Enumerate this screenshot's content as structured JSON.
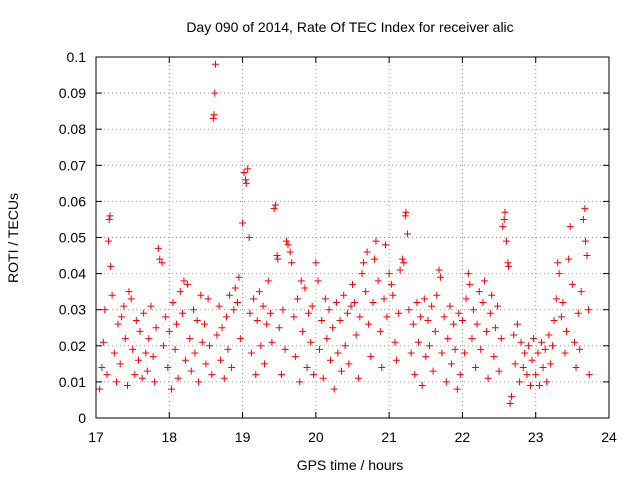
{
  "chart_data": {
    "type": "scatter",
    "title": "Day 090 of 2014, Rate Of TEC Index for receiver alic",
    "xlabel": "GPS time / hours",
    "ylabel": "ROTI / TECUs",
    "xlim": [
      17,
      24
    ],
    "ylim": [
      0,
      0.1
    ],
    "x_ticks": [
      17,
      18,
      19,
      20,
      21,
      22,
      23,
      24
    ],
    "x_tick_labels": [
      "17",
      "18",
      "19",
      "20",
      "21",
      "22",
      "23",
      "24"
    ],
    "y_ticks": [
      0,
      0.01,
      0.02,
      0.03,
      0.04,
      0.05,
      0.06,
      0.07,
      0.08,
      0.09,
      0.1
    ],
    "y_tick_labels": [
      "0",
      "0.01",
      "0.02",
      "0.03",
      "0.04",
      "0.05",
      "0.06",
      "0.07",
      "0.08",
      "0.09",
      "0.1"
    ],
    "grid": true,
    "marker": "+",
    "series": [
      {
        "name": "ROTI",
        "color": "#ff0000",
        "points": [
          [
            17.05,
            0.008
          ],
          [
            17.08,
            0.014
          ],
          [
            17.1,
            0.021
          ],
          [
            17.12,
            0.03
          ],
          [
            17.15,
            0.012
          ],
          [
            17.17,
            0.049
          ],
          [
            17.18,
            0.055
          ],
          [
            17.19,
            0.056
          ],
          [
            17.2,
            0.042
          ],
          [
            17.22,
            0.034
          ],
          [
            17.25,
            0.018
          ],
          [
            17.28,
            0.01
          ],
          [
            17.3,
            0.026
          ],
          [
            17.33,
            0.015
          ],
          [
            17.35,
            0.028
          ],
          [
            17.38,
            0.031
          ],
          [
            17.4,
            0.022
          ],
          [
            17.43,
            0.009
          ],
          [
            17.45,
            0.035
          ],
          [
            17.48,
            0.033
          ],
          [
            17.5,
            0.019
          ],
          [
            17.53,
            0.012
          ],
          [
            17.55,
            0.027
          ],
          [
            17.58,
            0.016
          ],
          [
            17.6,
            0.024
          ],
          [
            17.63,
            0.011
          ],
          [
            17.65,
            0.029
          ],
          [
            17.68,
            0.018
          ],
          [
            17.7,
            0.013
          ],
          [
            17.72,
            0.022
          ],
          [
            17.75,
            0.031
          ],
          [
            17.78,
            0.017
          ],
          [
            17.8,
            0.01
          ],
          [
            17.82,
            0.025
          ],
          [
            17.85,
            0.047
          ],
          [
            17.87,
            0.044
          ],
          [
            17.9,
            0.043
          ],
          [
            17.92,
            0.02
          ],
          [
            17.95,
            0.028
          ],
          [
            17.98,
            0.014
          ],
          [
            18.0,
            0.024
          ],
          [
            18.03,
            0.008
          ],
          [
            18.05,
            0.032
          ],
          [
            18.08,
            0.019
          ],
          [
            18.1,
            0.026
          ],
          [
            18.12,
            0.011
          ],
          [
            18.15,
            0.035
          ],
          [
            18.18,
            0.029
          ],
          [
            18.2,
            0.038
          ],
          [
            18.22,
            0.016
          ],
          [
            18.25,
            0.037
          ],
          [
            18.28,
            0.022
          ],
          [
            18.3,
            0.013
          ],
          [
            18.33,
            0.03
          ],
          [
            18.35,
            0.018
          ],
          [
            18.38,
            0.027
          ],
          [
            18.4,
            0.01
          ],
          [
            18.43,
            0.034
          ],
          [
            18.45,
            0.021
          ],
          [
            18.48,
            0.026
          ],
          [
            18.5,
            0.015
          ],
          [
            18.53,
            0.033
          ],
          [
            18.55,
            0.02
          ],
          [
            18.58,
            0.012
          ],
          [
            18.6,
            0.083
          ],
          [
            18.61,
            0.084
          ],
          [
            18.62,
            0.09
          ],
          [
            18.63,
            0.098
          ],
          [
            18.65,
            0.023
          ],
          [
            18.68,
            0.031
          ],
          [
            18.7,
            0.016
          ],
          [
            18.72,
            0.025
          ],
          [
            18.75,
            0.011
          ],
          [
            18.78,
            0.028
          ],
          [
            18.8,
            0.019
          ],
          [
            18.82,
            0.034
          ],
          [
            18.85,
            0.014
          ],
          [
            18.88,
            0.03
          ],
          [
            18.9,
            0.036
          ],
          [
            18.93,
            0.032
          ],
          [
            18.95,
            0.039
          ],
          [
            18.97,
            0.022
          ],
          [
            19.0,
            0.054
          ],
          [
            19.02,
            0.068
          ],
          [
            19.04,
            0.066
          ],
          [
            19.05,
            0.065
          ],
          [
            19.07,
            0.069
          ],
          [
            19.09,
            0.05
          ],
          [
            19.1,
            0.029
          ],
          [
            19.12,
            0.018
          ],
          [
            19.15,
            0.033
          ],
          [
            19.18,
            0.012
          ],
          [
            19.2,
            0.027
          ],
          [
            19.23,
            0.035
          ],
          [
            19.25,
            0.02
          ],
          [
            19.28,
            0.031
          ],
          [
            19.3,
            0.015
          ],
          [
            19.33,
            0.026
          ],
          [
            19.35,
            0.038
          ],
          [
            19.38,
            0.029
          ],
          [
            19.4,
            0.021
          ],
          [
            19.43,
            0.058
          ],
          [
            19.45,
            0.059
          ],
          [
            19.47,
            0.045
          ],
          [
            19.48,
            0.044
          ],
          [
            19.5,
            0.025
          ],
          [
            19.53,
            0.012
          ],
          [
            19.55,
            0.03
          ],
          [
            19.58,
            0.019
          ],
          [
            19.6,
            0.049
          ],
          [
            19.62,
            0.048
          ],
          [
            19.65,
            0.046
          ],
          [
            19.67,
            0.043
          ],
          [
            19.7,
            0.028
          ],
          [
            19.72,
            0.017
          ],
          [
            19.75,
            0.033
          ],
          [
            19.78,
            0.01
          ],
          [
            19.8,
            0.038
          ],
          [
            19.82,
            0.024
          ],
          [
            19.85,
            0.036
          ],
          [
            19.88,
            0.014
          ],
          [
            19.9,
            0.029
          ],
          [
            19.93,
            0.021
          ],
          [
            19.95,
            0.031
          ],
          [
            19.97,
            0.012
          ],
          [
            20.0,
            0.043
          ],
          [
            20.03,
            0.038
          ],
          [
            20.05,
            0.019
          ],
          [
            20.08,
            0.027
          ],
          [
            20.1,
            0.011
          ],
          [
            20.13,
            0.033
          ],
          [
            20.15,
            0.022
          ],
          [
            20.18,
            0.03
          ],
          [
            20.2,
            0.016
          ],
          [
            20.23,
            0.025
          ],
          [
            20.25,
            0.008
          ],
          [
            20.28,
            0.032
          ],
          [
            20.3,
            0.018
          ],
          [
            20.33,
            0.027
          ],
          [
            20.35,
            0.013
          ],
          [
            20.38,
            0.034
          ],
          [
            20.4,
            0.02
          ],
          [
            20.43,
            0.029
          ],
          [
            20.45,
            0.015
          ],
          [
            20.48,
            0.031
          ],
          [
            20.5,
            0.037
          ],
          [
            20.53,
            0.032
          ],
          [
            20.55,
            0.023
          ],
          [
            20.58,
            0.011
          ],
          [
            20.6,
            0.028
          ],
          [
            20.63,
            0.04
          ],
          [
            20.65,
            0.043
          ],
          [
            20.68,
            0.035
          ],
          [
            20.7,
            0.046
          ],
          [
            20.72,
            0.026
          ],
          [
            20.75,
            0.017
          ],
          [
            20.78,
            0.032
          ],
          [
            20.8,
            0.044
          ],
          [
            20.82,
            0.049
          ],
          [
            20.85,
            0.038
          ],
          [
            20.88,
            0.024
          ],
          [
            20.9,
            0.014
          ],
          [
            20.93,
            0.033
          ],
          [
            20.95,
            0.048
          ],
          [
            20.97,
            0.028
          ],
          [
            21.0,
            0.04
          ],
          [
            21.03,
            0.037
          ],
          [
            21.05,
            0.034
          ],
          [
            21.08,
            0.021
          ],
          [
            21.1,
            0.016
          ],
          [
            21.13,
            0.029
          ],
          [
            21.15,
            0.041
          ],
          [
            21.18,
            0.044
          ],
          [
            21.2,
            0.043
          ],
          [
            21.22,
            0.056
          ],
          [
            21.23,
            0.057
          ],
          [
            21.25,
            0.051
          ],
          [
            21.27,
            0.03
          ],
          [
            21.3,
            0.018
          ],
          [
            21.33,
            0.026
          ],
          [
            21.35,
            0.012
          ],
          [
            21.38,
            0.032
          ],
          [
            21.4,
            0.021
          ],
          [
            21.43,
            0.028
          ],
          [
            21.45,
            0.009
          ],
          [
            21.48,
            0.033
          ],
          [
            21.5,
            0.017
          ],
          [
            21.53,
            0.027
          ],
          [
            21.55,
            0.02
          ],
          [
            21.58,
            0.031
          ],
          [
            21.6,
            0.013
          ],
          [
            21.63,
            0.024
          ],
          [
            21.65,
            0.034
          ],
          [
            21.68,
            0.041
          ],
          [
            21.7,
            0.039
          ],
          [
            21.72,
            0.018
          ],
          [
            21.75,
            0.028
          ],
          [
            21.78,
            0.01
          ],
          [
            21.8,
            0.022
          ],
          [
            21.83,
            0.031
          ],
          [
            21.85,
            0.015
          ],
          [
            21.88,
            0.026
          ],
          [
            21.9,
            0.019
          ],
          [
            21.93,
            0.008
          ],
          [
            21.95,
            0.029
          ],
          [
            21.97,
            0.012
          ],
          [
            22.0,
            0.027
          ],
          [
            22.03,
            0.018
          ],
          [
            22.05,
            0.033
          ],
          [
            22.08,
            0.04
          ],
          [
            22.1,
            0.037
          ],
          [
            22.13,
            0.022
          ],
          [
            22.15,
            0.03
          ],
          [
            22.18,
            0.014
          ],
          [
            22.2,
            0.026
          ],
          [
            22.23,
            0.035
          ],
          [
            22.25,
            0.019
          ],
          [
            22.28,
            0.032
          ],
          [
            22.3,
            0.038
          ],
          [
            22.33,
            0.024
          ],
          [
            22.35,
            0.011
          ],
          [
            22.38,
            0.029
          ],
          [
            22.4,
            0.034
          ],
          [
            22.43,
            0.017
          ],
          [
            22.45,
            0.025
          ],
          [
            22.48,
            0.031
          ],
          [
            22.5,
            0.013
          ],
          [
            22.53,
            0.022
          ],
          [
            22.55,
            0.053
          ],
          [
            22.57,
            0.055
          ],
          [
            22.58,
            0.057
          ],
          [
            22.6,
            0.049
          ],
          [
            22.62,
            0.043
          ],
          [
            22.63,
            0.042
          ],
          [
            22.65,
            0.004
          ],
          [
            22.67,
            0.006
          ],
          [
            22.7,
            0.023
          ],
          [
            22.72,
            0.015
          ],
          [
            22.75,
            0.026
          ],
          [
            22.78,
            0.01
          ],
          [
            22.8,
            0.021
          ],
          [
            22.83,
            0.014
          ],
          [
            22.85,
            0.018
          ],
          [
            22.88,
            0.012
          ],
          [
            22.9,
            0.02
          ],
          [
            22.93,
            0.009
          ],
          [
            22.95,
            0.016
          ],
          [
            22.97,
            0.022
          ],
          [
            23.0,
            0.012
          ],
          [
            23.03,
            0.018
          ],
          [
            23.05,
            0.009
          ],
          [
            23.08,
            0.021
          ],
          [
            23.1,
            0.014
          ],
          [
            23.13,
            0.019
          ],
          [
            23.15,
            0.01
          ],
          [
            23.18,
            0.023
          ],
          [
            23.2,
            0.015
          ],
          [
            23.23,
            0.02
          ],
          [
            23.25,
            0.027
          ],
          [
            23.28,
            0.033
          ],
          [
            23.3,
            0.043
          ],
          [
            23.32,
            0.04
          ],
          [
            23.35,
            0.028
          ],
          [
            23.37,
            0.032
          ],
          [
            23.4,
            0.018
          ],
          [
            23.42,
            0.024
          ],
          [
            23.45,
            0.044
          ],
          [
            23.47,
            0.053
          ],
          [
            23.5,
            0.037
          ],
          [
            23.53,
            0.021
          ],
          [
            23.55,
            0.014
          ],
          [
            23.58,
            0.029
          ],
          [
            23.6,
            0.019
          ],
          [
            23.62,
            0.035
          ],
          [
            23.65,
            0.055
          ],
          [
            23.67,
            0.058
          ],
          [
            23.68,
            0.049
          ],
          [
            23.7,
            0.045
          ],
          [
            23.72,
            0.03
          ],
          [
            23.73,
            0.012
          ]
        ]
      }
    ]
  }
}
